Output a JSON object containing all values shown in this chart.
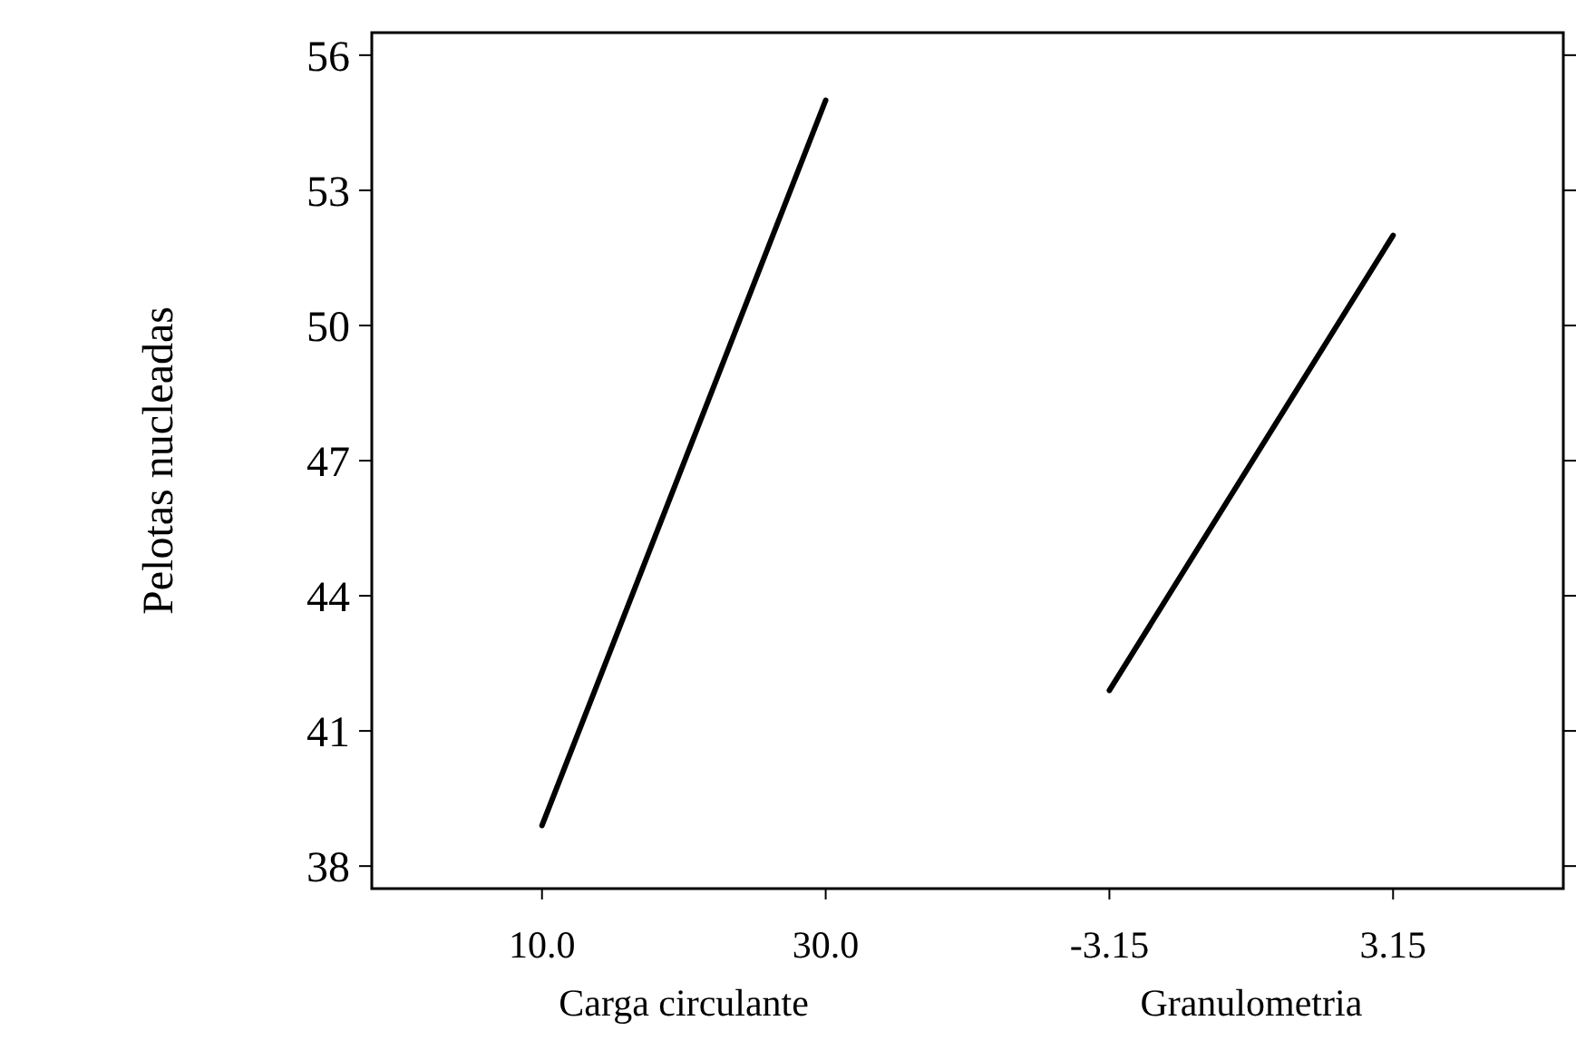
{
  "chart_data": {
    "type": "line",
    "ylabel": "Pelotas nucleadas",
    "categories": [
      "10.0",
      "30.0",
      "-3.15",
      "3.15"
    ],
    "series": [
      {
        "color": "#000000",
        "values": [
          38.9,
          55.0,
          null,
          null
        ]
      },
      {
        "color": "#000000",
        "values": [
          null,
          null,
          41.9,
          52.0
        ]
      }
    ],
    "annotations": [
      "Carga circulante",
      "Granulometria"
    ],
    "ylim": [
      37.5,
      56.5
    ],
    "yticks": [
      38,
      41,
      44,
      47,
      50,
      53,
      56
    ],
    "grid": false,
    "marker": "none",
    "line_style": "solid"
  }
}
